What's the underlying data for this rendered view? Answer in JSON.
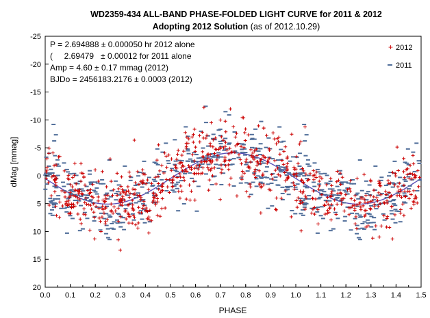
{
  "chart_data": {
    "type": "scatter",
    "title": "WD2359-434  ALL-BAND  PHASE-FOLDED  LIGHT CURVE  for 2011 & 2012",
    "subtitle_bold": "Adopting 2012  Solution",
    "subtitle_normal": " (as of 2012.10.29)",
    "xlabel": "PHASE",
    "ylabel": "dMag [mmag]",
    "xlim": [
      0.0,
      1.5
    ],
    "ylim": [
      -25,
      20
    ],
    "y_inverted": true,
    "x_ticks": [
      "0.0",
      "0.1",
      "0.2",
      "0.3",
      "0.4",
      "0.5",
      "0.6",
      "0.7",
      "0.8",
      "0.9",
      "1.0",
      "1.1",
      "1.2",
      "1.3",
      "1.4",
      "1.5"
    ],
    "y_ticks": [
      "-25",
      "-20",
      "-15",
      "-10",
      "-5",
      "0",
      "5",
      "10",
      "15",
      "20"
    ],
    "annotations": [
      "P = 2.694888  ± 0.000050  hr  2012 alone",
      "(     2.69479   ± 0.00012 for 2011 alone",
      "Amp = 4.60 ± 0.17 mmag (2012)",
      "BJDo = 2456183.2176  ± 0.0003 (2012)"
    ],
    "legend_position": "top-right",
    "series": [
      {
        "name": "2012",
        "marker": "+",
        "color": "#cc0000"
      },
      {
        "name": "2011",
        "marker": "-",
        "color": "#4f6d99"
      }
    ],
    "fit_curve": {
      "amplitude": 4.6,
      "center": 0.5,
      "peak_phase": 0.75,
      "color": "#5a50b8"
    },
    "colors": {
      "series_2012": "#cc0000",
      "series_2011": "#4f6d99",
      "fit": "#5a50b8",
      "axis": "#000000"
    }
  }
}
